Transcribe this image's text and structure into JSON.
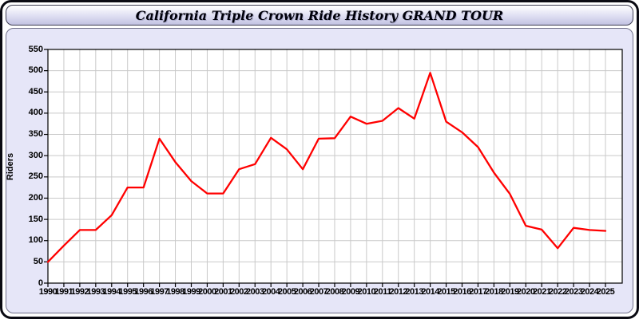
{
  "window": {
    "title": "California Triple Crown Ride History GRAND TOUR"
  },
  "chart_data": {
    "type": "line",
    "title": "California Triple Crown Ride History GRAND TOUR",
    "xlabel": "",
    "ylabel": "Riders",
    "ylim": [
      0,
      550
    ],
    "ytick_step": 50,
    "grid": true,
    "legend": "none",
    "x": [
      1990,
      1991,
      1992,
      1993,
      1994,
      1995,
      1996,
      1997,
      1998,
      1999,
      2000,
      2001,
      2002,
      2003,
      2004,
      2005,
      2006,
      2007,
      2008,
      2009,
      2010,
      2011,
      2012,
      2013,
      2014,
      2015,
      2016,
      2017,
      2018,
      2019,
      2020,
      2021,
      2022,
      2023,
      2024,
      2025
    ],
    "values": [
      50,
      88,
      125,
      125,
      160,
      225,
      225,
      340,
      285,
      240,
      211,
      211,
      268,
      280,
      342,
      315,
      268,
      340,
      341,
      392,
      375,
      382,
      412,
      387,
      495,
      380,
      355,
      320,
      260,
      210,
      135,
      126,
      82,
      130,
      125,
      123
    ]
  },
  "colors": {
    "line": "#ff0000",
    "grid": "#c9c9c9",
    "plot_border": "#000000",
    "plot_bg": "#ffffff",
    "panel_bg": "#e6e6f8",
    "titlebar_top": "#ffffff",
    "titlebar_bottom": "#c2c2e2"
  }
}
